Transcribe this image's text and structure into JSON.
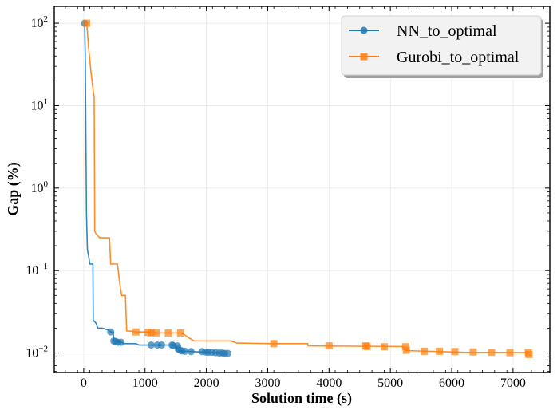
{
  "chart_data": {
    "type": "line",
    "title": "",
    "xlabel": "Solution time (s)",
    "ylabel": "Gap (%)",
    "xscale": "linear",
    "yscale": "log",
    "xlim": [
      -480,
      7600
    ],
    "ylim": [
      0.0058,
      160
    ],
    "xticks": [
      0,
      1000,
      2000,
      3000,
      4000,
      5000,
      6000,
      7000
    ],
    "yticks": [
      {
        "value": 0.01,
        "base": "10",
        "exp": "−2"
      },
      {
        "value": 0.1,
        "base": "10",
        "exp": "−1"
      },
      {
        "value": 1,
        "base": "10",
        "exp": "0"
      },
      {
        "value": 10,
        "base": "10",
        "exp": "1"
      },
      {
        "value": 100,
        "base": "10",
        "exp": "2"
      }
    ],
    "grid": true,
    "legend_position": "top-right",
    "series": [
      {
        "name": "NN_to_optimal",
        "color": "#1f77b4",
        "marker": "circle",
        "line": [
          [
            0,
            100
          ],
          [
            15,
            100
          ],
          [
            25,
            40
          ],
          [
            45,
            0.5
          ],
          [
            60,
            0.18
          ],
          [
            80,
            0.15
          ],
          [
            100,
            0.12
          ],
          [
            150,
            0.12
          ],
          [
            155,
            0.025
          ],
          [
            200,
            0.023
          ],
          [
            230,
            0.02
          ],
          [
            300,
            0.02
          ],
          [
            400,
            0.019
          ],
          [
            440,
            0.018
          ],
          [
            480,
            0.018
          ],
          [
            490,
            0.014
          ],
          [
            520,
            0.0138
          ],
          [
            580,
            0.0135
          ],
          [
            620,
            0.0135
          ],
          [
            650,
            0.013
          ],
          [
            850,
            0.013
          ],
          [
            900,
            0.0125
          ],
          [
            1500,
            0.0125
          ],
          [
            1520,
            0.0112
          ],
          [
            1560,
            0.0107
          ],
          [
            1650,
            0.0105
          ],
          [
            2000,
            0.0102
          ],
          [
            2350,
            0.0099
          ]
        ],
        "markers": [
          [
            15,
            100
          ],
          [
            440,
            0.018
          ],
          [
            490,
            0.014
          ],
          [
            520,
            0.0138
          ],
          [
            560,
            0.0135
          ],
          [
            610,
            0.0135
          ],
          [
            1100,
            0.0125
          ],
          [
            1200,
            0.0125
          ],
          [
            1270,
            0.0125
          ],
          [
            1440,
            0.0125
          ],
          [
            1460,
            0.0123
          ],
          [
            1530,
            0.0122
          ],
          [
            1540,
            0.0112
          ],
          [
            1570,
            0.0108
          ],
          [
            1600,
            0.0106
          ],
          [
            1650,
            0.0105
          ],
          [
            1750,
            0.0104
          ],
          [
            1930,
            0.0104
          ],
          [
            1990,
            0.0103
          ],
          [
            2030,
            0.0102
          ],
          [
            2090,
            0.0102
          ],
          [
            2150,
            0.0101
          ],
          [
            2210,
            0.01
          ],
          [
            2260,
            0.01
          ],
          [
            2300,
            0.0099
          ],
          [
            2350,
            0.0099
          ]
        ]
      },
      {
        "name": "Gurobi_to_optimal",
        "color": "#ff7f0e",
        "marker": "square",
        "line": [
          [
            30,
            100
          ],
          [
            50,
            100
          ],
          [
            80,
            50
          ],
          [
            120,
            25
          ],
          [
            160,
            14
          ],
          [
            170,
            13
          ],
          [
            180,
            0.3
          ],
          [
            200,
            0.28
          ],
          [
            260,
            0.25
          ],
          [
            420,
            0.25
          ],
          [
            440,
            0.12
          ],
          [
            550,
            0.12
          ],
          [
            570,
            0.09
          ],
          [
            600,
            0.06
          ],
          [
            620,
            0.05
          ],
          [
            680,
            0.05
          ],
          [
            700,
            0.0185
          ],
          [
            800,
            0.0183
          ],
          [
            850,
            0.018
          ],
          [
            1150,
            0.018
          ],
          [
            1180,
            0.0175
          ],
          [
            1600,
            0.0175
          ],
          [
            1700,
            0.0155
          ],
          [
            1800,
            0.014
          ],
          [
            2400,
            0.014
          ],
          [
            2500,
            0.0132
          ],
          [
            3100,
            0.013
          ],
          [
            3650,
            0.013
          ],
          [
            3660,
            0.0122
          ],
          [
            5200,
            0.012
          ],
          [
            5250,
            0.0107
          ],
          [
            6200,
            0.0102
          ],
          [
            7250,
            0.0101
          ]
        ],
        "markers": [
          [
            50,
            100
          ],
          [
            850,
            0.018
          ],
          [
            1050,
            0.0178
          ],
          [
            1100,
            0.0176
          ],
          [
            1180,
            0.0176
          ],
          [
            1380,
            0.0175
          ],
          [
            1580,
            0.0175
          ],
          [
            3100,
            0.013
          ],
          [
            4000,
            0.0122
          ],
          [
            4600,
            0.0122
          ],
          [
            4620,
            0.012
          ],
          [
            4900,
            0.0119
          ],
          [
            5250,
            0.0119
          ],
          [
            5260,
            0.0108
          ],
          [
            5550,
            0.0105
          ],
          [
            5800,
            0.0105
          ],
          [
            6050,
            0.0104
          ],
          [
            6350,
            0.0103
          ],
          [
            6650,
            0.0102
          ],
          [
            6950,
            0.0101
          ],
          [
            7250,
            0.0101
          ],
          [
            7260,
            0.0096
          ]
        ]
      }
    ]
  }
}
